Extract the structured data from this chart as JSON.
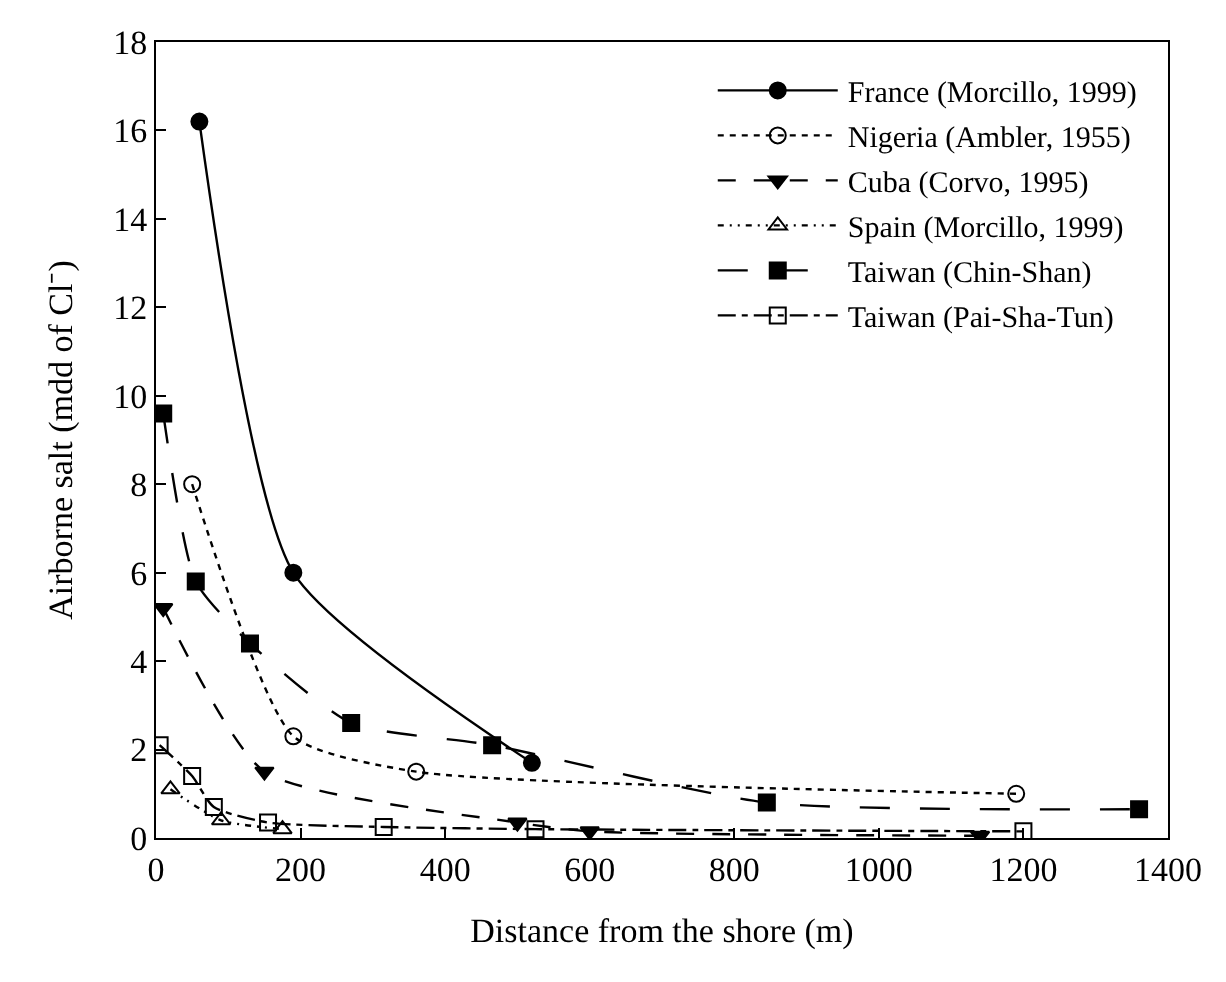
{
  "chart_data": {
    "type": "line",
    "xlabel": "Distance from the shore (m)",
    "ylabel": "Airborne salt (mdd of Cl⁻)",
    "xlim": [
      0,
      1400
    ],
    "xticks": [
      0,
      200,
      400,
      600,
      800,
      1000,
      1200,
      1400
    ],
    "ylim": [
      0,
      18
    ],
    "yticks": [
      0,
      2,
      4,
      6,
      8,
      10,
      12,
      14,
      16,
      18
    ],
    "grid": false,
    "legend": "top right",
    "series": [
      {
        "name": "France (Morcillo, 1999)",
        "color": "#000000",
        "marker": "circle",
        "line_style": "solid",
        "x": [
          60,
          190,
          520
        ],
        "values": [
          16.2,
          6.0,
          1.7
        ]
      },
      {
        "name": "Nigeria (Ambler, 1955)",
        "color": "#000000",
        "marker": "circle-open",
        "line_style": "dotted",
        "x": [
          50,
          190,
          360,
          1190
        ],
        "values": [
          8.0,
          2.3,
          1.5,
          1.0
        ]
      },
      {
        "name": "Cuba (Corvo, 1995)",
        "color": "#000000",
        "marker": "triangle-down",
        "line_style": "dashed",
        "x": [
          10,
          150,
          500,
          600,
          1140
        ],
        "values": [
          5.2,
          1.5,
          0.35,
          0.15,
          0.05
        ]
      },
      {
        "name": "Spain (Morcillo, 1999)",
        "color": "#000000",
        "marker": "triangle-up-open",
        "line_style": "dashdotdot",
        "x": [
          20,
          90,
          175
        ],
        "values": [
          1.1,
          0.4,
          0.2
        ]
      },
      {
        "name": "Taiwan (Chin-Shan)",
        "color": "#000000",
        "marker": "square",
        "line_style": "longdash",
        "x": [
          10,
          55,
          130,
          270,
          465,
          845,
          1360
        ],
        "values": [
          9.6,
          5.8,
          4.4,
          2.6,
          2.1,
          0.8,
          0.65
        ]
      },
      {
        "name": "Taiwan (Pai-Sha-Tun)",
        "color": "#000000",
        "marker": "square-open",
        "line_style": "dashdot",
        "x": [
          5,
          50,
          80,
          155,
          315,
          525,
          1200
        ],
        "values": [
          2.1,
          1.4,
          0.7,
          0.35,
          0.25,
          0.2,
          0.15
        ]
      }
    ]
  }
}
